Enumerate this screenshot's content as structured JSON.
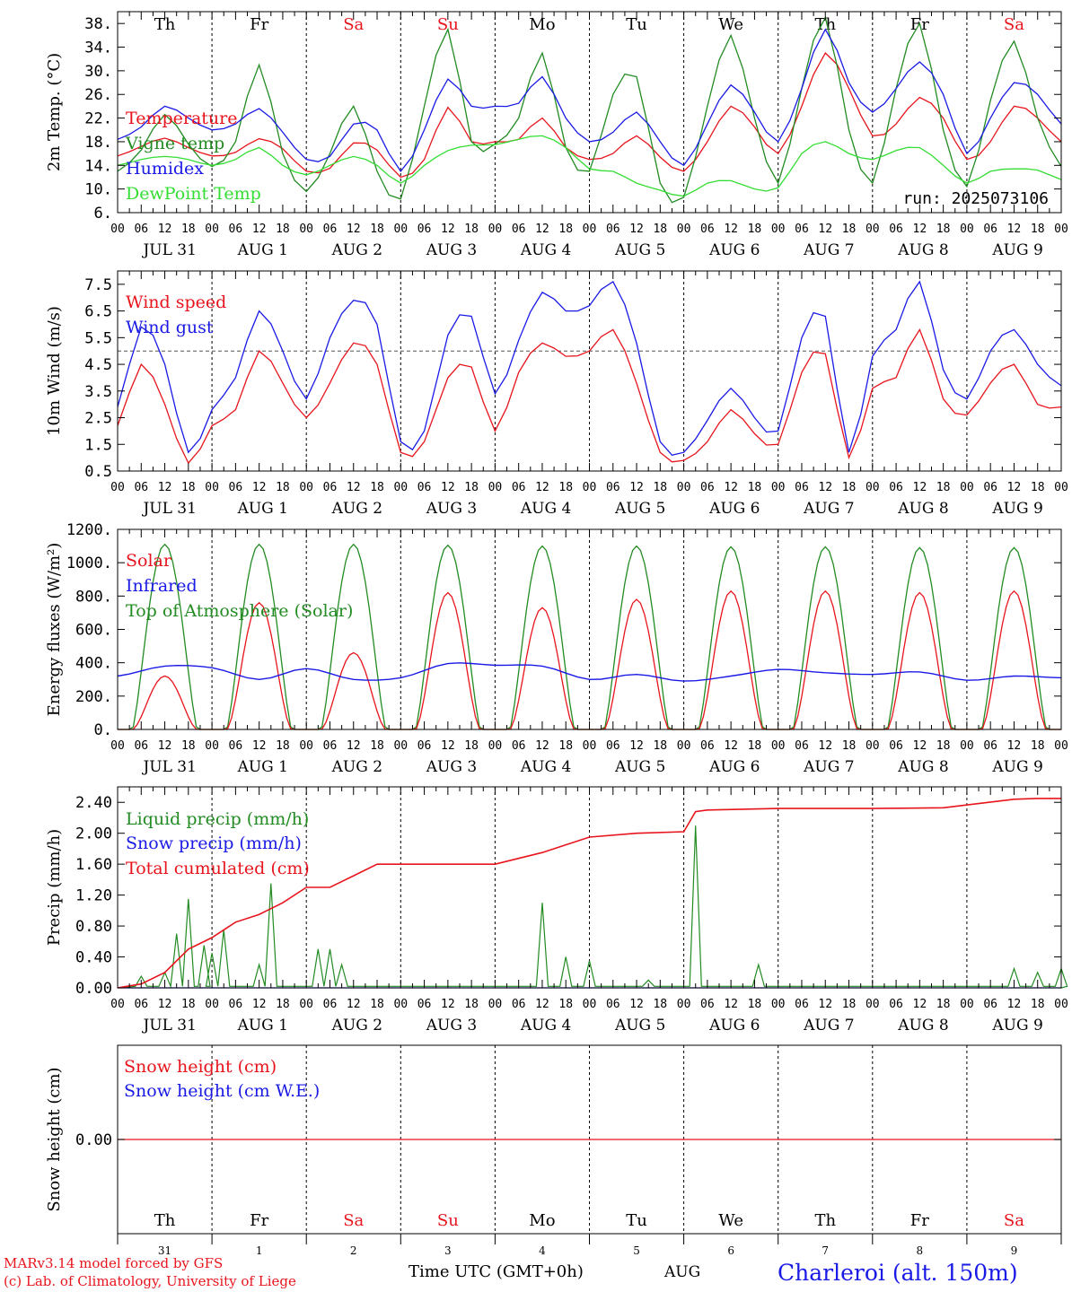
{
  "weekdays": [
    {
      "label": "Th",
      "color": "#000000"
    },
    {
      "label": "Fr",
      "color": "#000000"
    },
    {
      "label": "Sa",
      "color": "#e8141c"
    },
    {
      "label": "Su",
      "color": "#e8141c"
    },
    {
      "label": "Mo",
      "color": "#000000"
    },
    {
      "label": "Tu",
      "color": "#000000"
    },
    {
      "label": "We",
      "color": "#000000"
    },
    {
      "label": "Th",
      "color": "#000000"
    },
    {
      "label": "Fr",
      "color": "#000000"
    },
    {
      "label": "Sa",
      "color": "#e8141c"
    }
  ],
  "date_labels": [
    "JUL 31",
    "AUG  1",
    "AUG  2",
    "AUG  3",
    "AUG  4",
    "AUG  5",
    "AUG  6",
    "AUG  7",
    "AUG  8",
    "AUG  9"
  ],
  "hour_ticks": [
    "00",
    "06",
    "12",
    "18"
  ],
  "day_numbers": [
    "31",
    "1",
    "2",
    "3",
    "4",
    "5",
    "6",
    "7",
    "8",
    "9"
  ],
  "footer": {
    "model_line": "MARv3.14 model forced by GFS",
    "credit_line": "(c) Lab. of Climatology, University of Liege",
    "time_axis": "Time UTC (GMT+0h)",
    "month": "AUG",
    "station": "Charleroi (alt. 150m)"
  },
  "colors": {
    "red": "#e8141c",
    "blue": "#1a1ae6",
    "green": "#228b22",
    "lightgreen": "#33dd33"
  },
  "chart_data": [
    {
      "type": "line",
      "ylabel": "2m Temp. (°C)",
      "ylim": [
        6,
        40
      ],
      "yticks": [
        "6.",
        "10.",
        "14.",
        "18.",
        "22.",
        "26.",
        "30.",
        "34.",
        "38."
      ],
      "annotation": "run: 2025073106",
      "x_hours": [
        0,
        6,
        12,
        18,
        24,
        30,
        36,
        42,
        48,
        54,
        60,
        66,
        72,
        78,
        84,
        90,
        96,
        102,
        108,
        114,
        120,
        126,
        132,
        138,
        144,
        150,
        156,
        162,
        168,
        174,
        180,
        186,
        192,
        198,
        204,
        210,
        216,
        222,
        228,
        234,
        240
      ],
      "series": [
        {
          "name": "Temperature",
          "color": "red",
          "values": [
            15.6,
            17.2,
            18.6,
            17.0,
            15.6,
            16.2,
            18.5,
            16.8,
            13.0,
            13.5,
            17.8,
            16.6,
            12.0,
            15.0,
            23.8,
            18.0,
            18.0,
            18.4,
            22.0,
            17.0,
            15.0,
            16.0,
            19.0,
            15.4,
            13.0,
            18.0,
            24.0,
            20.5,
            16.0,
            24.0,
            33.0,
            27.0,
            19.0,
            21.0,
            25.5,
            22.0,
            15.0,
            18.0,
            24.0,
            22.0,
            18.0
          ]
        },
        {
          "name": "Vigne temp",
          "color": "green",
          "values": [
            13.0,
            16.6,
            22.6,
            17.6,
            13.8,
            18.0,
            31.0,
            16.0,
            9.6,
            16.0,
            24.0,
            13.0,
            8.3,
            24.0,
            37.0,
            18.0,
            17.6,
            22.0,
            33.0,
            17.0,
            13.0,
            26.0,
            29.0,
            11.0,
            8.6,
            24.0,
            36.0,
            22.0,
            11.0,
            27.0,
            39.0,
            20.0,
            11.0,
            27.0,
            38.0,
            20.0,
            10.4,
            25.0,
            35.0,
            22.0,
            13.8
          ]
        },
        {
          "name": "Humidex",
          "color": "blue",
          "values": [
            18.4,
            20.5,
            24.0,
            22.0,
            20.0,
            21.0,
            23.6,
            19.6,
            15.0,
            15.5,
            21.0,
            20.0,
            13.0,
            20.0,
            28.6,
            24.0,
            24.0,
            24.5,
            29.0,
            22.0,
            18.0,
            19.6,
            23.0,
            18.0,
            14.0,
            21.0,
            27.6,
            23.0,
            18.0,
            27.0,
            37.0,
            28.0,
            23.0,
            27.0,
            31.5,
            26.0,
            16.0,
            22.0,
            28.0,
            26.0,
            21.0
          ]
        },
        {
          "name": "DewPoint Temp",
          "color": "lightgreen",
          "values": [
            14.0,
            15.0,
            15.5,
            15.0,
            14.0,
            15.0,
            17.0,
            14.0,
            12.4,
            14.0,
            15.5,
            14.0,
            11.0,
            14.0,
            16.5,
            17.4,
            17.5,
            18.4,
            19.0,
            17.0,
            13.4,
            13.0,
            11.0,
            9.8,
            8.8,
            11.0,
            11.4,
            10.0,
            10.2,
            16.0,
            18.0,
            16.0,
            15.0,
            16.5,
            17.0,
            14.0,
            11.0,
            13.0,
            13.4,
            13.2,
            11.6
          ]
        }
      ]
    },
    {
      "type": "line",
      "ylabel": "10m Wind (m/s)",
      "ylim": [
        0.5,
        8
      ],
      "yticks": [
        "0.5",
        "1.5",
        "2.5",
        "3.5",
        "4.5",
        "5.5",
        "6.5",
        "7.5"
      ],
      "reference_line": 5.0,
      "x_hours": [
        0,
        6,
        12,
        18,
        24,
        30,
        36,
        42,
        48,
        54,
        60,
        66,
        72,
        78,
        84,
        90,
        96,
        102,
        108,
        114,
        120,
        126,
        132,
        138,
        144,
        150,
        156,
        162,
        168,
        174,
        180,
        186,
        192,
        198,
        204,
        210,
        216,
        222,
        228,
        234,
        240
      ],
      "series": [
        {
          "name": "Wind speed",
          "color": "red",
          "values": [
            2.2,
            4.5,
            3.0,
            0.8,
            2.2,
            2.8,
            5.0,
            3.8,
            2.5,
            3.8,
            5.3,
            4.5,
            1.2,
            1.6,
            4.0,
            4.4,
            2.0,
            4.2,
            5.3,
            4.8,
            5.0,
            5.8,
            3.8,
            1.2,
            0.9,
            1.6,
            2.8,
            1.9,
            1.5,
            4.2,
            4.9,
            1.0,
            3.6,
            4.0,
            5.8,
            3.2,
            2.6,
            3.8,
            4.5,
            3.0,
            2.9
          ]
        },
        {
          "name": "Wind gust",
          "color": "blue",
          "values": [
            2.9,
            5.9,
            4.5,
            1.2,
            2.8,
            4.0,
            6.5,
            5.0,
            3.2,
            5.5,
            6.9,
            6.0,
            1.6,
            2.0,
            5.6,
            6.3,
            3.4,
            5.4,
            7.2,
            6.5,
            6.7,
            7.6,
            5.3,
            1.6,
            1.2,
            2.4,
            3.6,
            2.5,
            2.0,
            5.5,
            6.3,
            1.2,
            4.8,
            5.8,
            7.6,
            4.3,
            3.2,
            5.0,
            5.8,
            4.5,
            3.7
          ]
        }
      ]
    },
    {
      "type": "line",
      "ylabel": "Energy fluxes (W/m²)",
      "ylim": [
        0,
        1200
      ],
      "yticks": [
        "0.",
        "200.",
        "400.",
        "600.",
        "800.",
        "1000.",
        "1200."
      ],
      "series": [
        {
          "name": "Solar",
          "color": "red",
          "daily_peaks": [
            320,
            760,
            460,
            820,
            730,
            780,
            830,
            830,
            820,
            830
          ]
        },
        {
          "name": "Infrared",
          "color": "blue",
          "values": [
            320,
            380,
            370,
            300,
            365,
            300,
            310,
            395,
            385,
            380,
            300,
            330,
            290,
            320,
            360,
            340,
            330,
            345,
            295,
            320,
            310
          ]
        },
        {
          "name": "Top of Atmosphere (Solar)",
          "color": "green",
          "daily_peaks": [
            1110,
            1110,
            1110,
            1105,
            1100,
            1100,
            1095,
            1095,
            1090,
            1090
          ]
        }
      ]
    },
    {
      "type": "line",
      "ylabel": "Precip (mm/h)",
      "ylim": [
        0,
        2.6
      ],
      "yticks": [
        "0.00",
        "0.40",
        "0.80",
        "1.20",
        "1.60",
        "2.00",
        "2.40"
      ],
      "series": [
        {
          "name": "Liquid precip (mm/h)",
          "color": "green",
          "events": [
            [
              6,
              0.15
            ],
            [
              12,
              0.2
            ],
            [
              15,
              0.7
            ],
            [
              18,
              1.15
            ],
            [
              22,
              0.55
            ],
            [
              24,
              0.45
            ],
            [
              27,
              0.75
            ],
            [
              36,
              0.3
            ],
            [
              39,
              1.35
            ],
            [
              51,
              0.5
            ],
            [
              54,
              0.5
            ],
            [
              57,
              0.3
            ],
            [
              108,
              1.1
            ],
            [
              114,
              0.4
            ],
            [
              120,
              0.35
            ],
            [
              135,
              0.1
            ],
            [
              147,
              2.1
            ],
            [
              163,
              0.3
            ],
            [
              228,
              0.25
            ],
            [
              234,
              0.2
            ],
            [
              240,
              0.25
            ]
          ]
        },
        {
          "name": "Snow precip (mm/h)",
          "color": "blue",
          "values": [
            0,
            0
          ]
        },
        {
          "name": "Total cumulated (cm)",
          "color": "red",
          "x_hours": [
            0,
            6,
            12,
            18,
            24,
            30,
            36,
            42,
            48,
            54,
            60,
            66,
            72,
            96,
            108,
            114,
            120,
            132,
            144,
            147,
            150,
            168,
            192,
            210,
            228,
            234,
            240
          ],
          "values": [
            0,
            0.05,
            0.2,
            0.5,
            0.65,
            0.85,
            0.95,
            1.1,
            1.3,
            1.3,
            1.45,
            1.6,
            1.6,
            1.6,
            1.75,
            1.85,
            1.95,
            2.0,
            2.02,
            2.28,
            2.3,
            2.32,
            2.32,
            2.33,
            2.44,
            2.45,
            2.45
          ]
        }
      ]
    },
    {
      "type": "line",
      "ylabel": "Snow height (cm)",
      "ylim": [
        -1,
        1
      ],
      "yticks": [
        "0.00"
      ],
      "series": [
        {
          "name": "Snow height (cm)",
          "color": "red",
          "values": [
            0,
            0
          ]
        },
        {
          "name": "Snow height (cm W.E.)",
          "color": "blue",
          "values": [
            0,
            0
          ]
        }
      ]
    }
  ]
}
